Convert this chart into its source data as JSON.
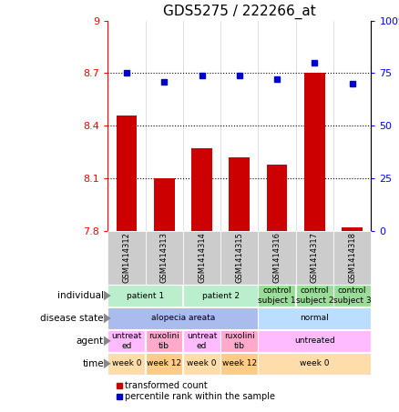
{
  "title": "GDS5275 / 222266_at",
  "samples": [
    "GSM1414312",
    "GSM1414313",
    "GSM1414314",
    "GSM1414315",
    "GSM1414316",
    "GSM1414317",
    "GSM1414318"
  ],
  "bar_values": [
    8.46,
    8.1,
    8.27,
    8.22,
    8.18,
    8.7,
    7.82
  ],
  "dot_values": [
    75.0,
    71.0,
    74.0,
    74.0,
    72.0,
    80.0,
    70.0
  ],
  "ylim_left": [
    7.8,
    9.0
  ],
  "ylim_right": [
    0,
    100
  ],
  "yticks_left": [
    7.8,
    8.1,
    8.4,
    8.7,
    9.0
  ],
  "yticks_right": [
    0,
    25,
    50,
    75,
    100
  ],
  "ytick_labels_left": [
    "7.8",
    "8.1",
    "8.4",
    "8.7",
    "9"
  ],
  "ytick_labels_right": [
    "0",
    "25",
    "50",
    "75",
    "100%"
  ],
  "bar_color": "#cc0000",
  "dot_color": "#0000cc",
  "bar_width": 0.55,
  "hline_values": [
    8.1,
    8.4,
    8.7
  ],
  "gsm_box_color": "#cccccc",
  "rows": {
    "individual": {
      "label": "individual",
      "groups": [
        {
          "text": "patient 1",
          "cols": [
            0,
            1
          ],
          "color": "#bbeecc"
        },
        {
          "text": "patient 2",
          "cols": [
            2,
            3
          ],
          "color": "#bbeecc"
        },
        {
          "text": "control\nsubject 1",
          "cols": [
            4
          ],
          "color": "#99dd99"
        },
        {
          "text": "control\nsubject 2",
          "cols": [
            5
          ],
          "color": "#99dd99"
        },
        {
          "text": "control\nsubject 3",
          "cols": [
            6
          ],
          "color": "#99dd99"
        }
      ]
    },
    "disease_state": {
      "label": "disease state",
      "groups": [
        {
          "text": "alopecia areata",
          "cols": [
            0,
            1,
            2,
            3
          ],
          "color": "#aabbee"
        },
        {
          "text": "normal",
          "cols": [
            4,
            5,
            6
          ],
          "color": "#bbddff"
        }
      ]
    },
    "agent": {
      "label": "agent",
      "groups": [
        {
          "text": "untreat\ned",
          "cols": [
            0
          ],
          "color": "#ffbbff"
        },
        {
          "text": "ruxolini\ntib",
          "cols": [
            1
          ],
          "color": "#ffaacc"
        },
        {
          "text": "untreat\ned",
          "cols": [
            2
          ],
          "color": "#ffbbff"
        },
        {
          "text": "ruxolini\ntib",
          "cols": [
            3
          ],
          "color": "#ffaacc"
        },
        {
          "text": "untreated",
          "cols": [
            4,
            5,
            6
          ],
          "color": "#ffbbff"
        }
      ]
    },
    "time": {
      "label": "time",
      "groups": [
        {
          "text": "week 0",
          "cols": [
            0
          ],
          "color": "#ffddaa"
        },
        {
          "text": "week 12",
          "cols": [
            1
          ],
          "color": "#ffcc88"
        },
        {
          "text": "week 0",
          "cols": [
            2
          ],
          "color": "#ffddaa"
        },
        {
          "text": "week 12",
          "cols": [
            3
          ],
          "color": "#ffcc88"
        },
        {
          "text": "week 0",
          "cols": [
            4,
            5,
            6
          ],
          "color": "#ffddaa"
        }
      ]
    }
  },
  "row_order": [
    "individual",
    "disease_state",
    "agent",
    "time"
  ],
  "row_labels": [
    "individual",
    "disease state",
    "agent",
    "time"
  ],
  "legend": [
    {
      "color": "#cc0000",
      "label": "transformed count"
    },
    {
      "color": "#0000cc",
      "label": "percentile rank within the sample"
    }
  ]
}
